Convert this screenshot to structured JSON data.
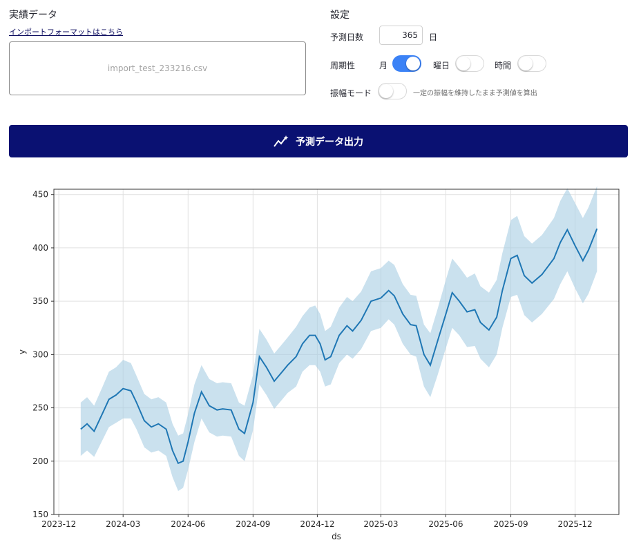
{
  "actual": {
    "title": "実績データ",
    "import_format_link": "インポートフォーマットはこちら",
    "file_name": "import_test_233216.csv"
  },
  "settings": {
    "title": "設定",
    "forecast_days_label": "予測日数",
    "forecast_days_value": "365",
    "forecast_days_unit": "日",
    "seasonality_label": "周期性",
    "month_label": "月",
    "month_on": true,
    "weekday_label": "曜日",
    "weekday_on": false,
    "hour_label": "時間",
    "hour_on": false,
    "amplitude_label": "振幅モード",
    "amplitude_on": false,
    "amplitude_hint": "一定の振幅を維持したまま予測値を算出"
  },
  "run_button_label": "予測データ出力",
  "chart_data": {
    "type": "line",
    "xlabel": "ds",
    "ylabel": "y",
    "xlim": [
      "2023-11-24",
      "2026-02-01"
    ],
    "ylim": [
      150,
      455
    ],
    "yticks": [
      150,
      200,
      250,
      300,
      350,
      400,
      450
    ],
    "xticks": [
      "2023-12",
      "2024-03",
      "2024-06",
      "2024-09",
      "2024-12",
      "2025-03",
      "2025-06",
      "2025-09",
      "2025-12"
    ],
    "grid": true,
    "colors": {
      "forecast": "#1f77b4",
      "band": "#a6cde3",
      "points": "#000000",
      "grid": "#e0e0e0"
    },
    "forecast": {
      "x": [
        "2024-01-01",
        "2024-01-10",
        "2024-01-20",
        "2024-02-01",
        "2024-02-10",
        "2024-02-20",
        "2024-03-01",
        "2024-03-12",
        "2024-03-20",
        "2024-03-31",
        "2024-04-10",
        "2024-04-20",
        "2024-05-01",
        "2024-05-10",
        "2024-05-18",
        "2024-05-25",
        "2024-06-01",
        "2024-06-10",
        "2024-06-20",
        "2024-07-01",
        "2024-07-12",
        "2024-07-20",
        "2024-08-01",
        "2024-08-12",
        "2024-08-20",
        "2024-09-01",
        "2024-09-10",
        "2024-09-20",
        "2024-10-01",
        "2024-10-10",
        "2024-10-20",
        "2024-11-01",
        "2024-11-10",
        "2024-11-20",
        "2024-11-28",
        "2024-12-05",
        "2024-12-12",
        "2024-12-20",
        "2025-01-01",
        "2025-01-12",
        "2025-01-20",
        "2025-02-01",
        "2025-02-15",
        "2025-03-01",
        "2025-03-12",
        "2025-03-20",
        "2025-04-01",
        "2025-04-12",
        "2025-04-20",
        "2025-05-01",
        "2025-05-10",
        "2025-05-20",
        "2025-06-01",
        "2025-06-10",
        "2025-06-20",
        "2025-07-01",
        "2025-07-12",
        "2025-07-20",
        "2025-08-01",
        "2025-08-12",
        "2025-08-20",
        "2025-09-01",
        "2025-09-10",
        "2025-09-20",
        "2025-10-01",
        "2025-10-15",
        "2025-11-01",
        "2025-11-10",
        "2025-11-20",
        "2025-12-01",
        "2025-12-12",
        "2025-12-20",
        "2026-01-01"
      ],
      "yhat": [
        230,
        235,
        228,
        245,
        258,
        262,
        268,
        266,
        255,
        238,
        232,
        235,
        230,
        210,
        198,
        200,
        218,
        245,
        265,
        252,
        248,
        249,
        248,
        230,
        226,
        255,
        298,
        288,
        275,
        282,
        290,
        298,
        310,
        318,
        318,
        310,
        295,
        298,
        318,
        327,
        322,
        332,
        350,
        353,
        360,
        355,
        338,
        328,
        327,
        300,
        290,
        312,
        338,
        358,
        350,
        340,
        342,
        330,
        323,
        335,
        360,
        390,
        393,
        374,
        367,
        375,
        390,
        405,
        417,
        402,
        388,
        398,
        418
      ],
      "lower": [
        205,
        210,
        204,
        220,
        232,
        236,
        240,
        240,
        230,
        213,
        208,
        210,
        205,
        185,
        172,
        175,
        192,
        218,
        240,
        227,
        223,
        224,
        223,
        205,
        200,
        229,
        272,
        262,
        249,
        256,
        264,
        270,
        284,
        290,
        290,
        284,
        270,
        272,
        292,
        300,
        296,
        305,
        322,
        325,
        333,
        328,
        310,
        300,
        298,
        270,
        260,
        280,
        306,
        325,
        318,
        307,
        308,
        296,
        288,
        300,
        325,
        354,
        356,
        337,
        330,
        338,
        352,
        366,
        378,
        362,
        348,
        357,
        378
      ],
      "upper": [
        255,
        260,
        252,
        270,
        284,
        288,
        295,
        292,
        280,
        263,
        258,
        260,
        255,
        235,
        224,
        226,
        244,
        272,
        290,
        277,
        273,
        274,
        273,
        255,
        252,
        281,
        324,
        314,
        301,
        308,
        316,
        326,
        336,
        344,
        346,
        338,
        322,
        326,
        344,
        354,
        350,
        359,
        378,
        381,
        388,
        384,
        366,
        356,
        355,
        328,
        320,
        342,
        370,
        390,
        382,
        372,
        376,
        364,
        358,
        370,
        395,
        426,
        430,
        411,
        404,
        412,
        428,
        444,
        456,
        442,
        428,
        438,
        458
      ]
    },
    "actual_points": {
      "x": [],
      "y": []
    }
  }
}
